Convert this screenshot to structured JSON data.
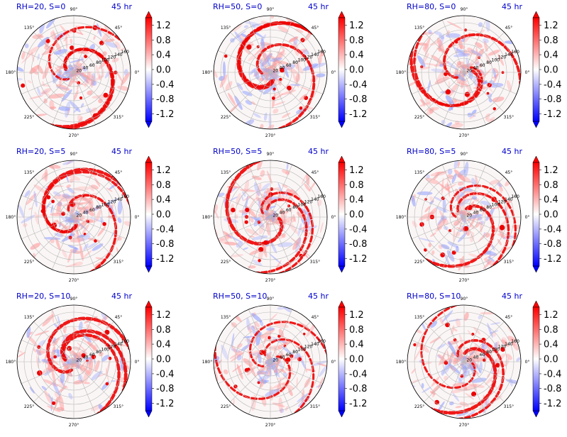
{
  "figure": {
    "time_label": "45 hr",
    "colors": {
      "title": "#0000cc",
      "positive": "#ee0000",
      "negative": "#0000ee",
      "grid": "#b8b8b8"
    }
  },
  "chart_data": [
    {
      "type": "heatmap",
      "projection": "polar",
      "title": "RH=20, S=0",
      "annotation": "45 hr",
      "r_ticks": [
        20,
        40,
        60,
        80,
        100,
        120,
        140,
        160
      ],
      "theta_ticks": [
        "90°",
        "135°",
        "180°",
        "225°",
        "270°",
        "315°",
        "0°",
        "45°"
      ],
      "colorbar": {
        "ticks": [
          1.2,
          0.8,
          0.4,
          0.0,
          -0.4,
          -0.8,
          -1.2
        ],
        "extend": "both",
        "cmap": "bwr"
      }
    },
    {
      "type": "heatmap",
      "projection": "polar",
      "title": "RH=50, S=0",
      "annotation": "45 hr",
      "r_ticks": [
        20,
        40,
        60,
        80,
        100,
        120,
        140,
        160
      ],
      "theta_ticks": [
        "90°",
        "135°",
        "180°",
        "225°",
        "270°",
        "315°",
        "0°",
        "45°"
      ],
      "colorbar": {
        "ticks": [
          1.2,
          0.8,
          0.4,
          0.0,
          -0.4,
          -0.8,
          -1.2
        ],
        "extend": "both",
        "cmap": "bwr"
      }
    },
    {
      "type": "heatmap",
      "projection": "polar",
      "title": "RH=80, S=0",
      "annotation": "45 hr",
      "r_ticks": [
        20,
        40,
        60,
        80,
        100,
        120,
        140,
        160
      ],
      "theta_ticks": [
        "90°",
        "135°",
        "180°",
        "225°",
        "270°",
        "315°",
        "0°",
        "45°"
      ],
      "colorbar": {
        "ticks": [
          1.2,
          0.8,
          0.4,
          0.0,
          -0.4,
          -0.8,
          -1.2
        ],
        "extend": "both",
        "cmap": "bwr"
      }
    },
    {
      "type": "heatmap",
      "projection": "polar",
      "title": "RH=20, S=5",
      "annotation": "45 hr",
      "r_ticks": [
        20,
        40,
        60,
        80,
        100,
        120,
        140,
        160
      ],
      "theta_ticks": [
        "90°",
        "135°",
        "180°",
        "225°",
        "270°",
        "315°",
        "0°",
        "45°"
      ],
      "colorbar": {
        "ticks": [
          1.2,
          0.8,
          0.4,
          0.0,
          -0.4,
          -0.8,
          -1.2
        ],
        "extend": "both",
        "cmap": "bwr"
      }
    },
    {
      "type": "heatmap",
      "projection": "polar",
      "title": "RH=50, S=5",
      "annotation": "45 hr",
      "r_ticks": [
        20,
        40,
        60,
        80,
        100,
        120,
        140,
        160
      ],
      "theta_ticks": [
        "90°",
        "135°",
        "180°",
        "225°",
        "270°",
        "315°",
        "0°",
        "45°"
      ],
      "colorbar": {
        "ticks": [
          1.2,
          0.8,
          0.4,
          0.0,
          -0.4,
          -0.8,
          -1.2
        ],
        "extend": "both",
        "cmap": "bwr"
      }
    },
    {
      "type": "heatmap",
      "projection": "polar",
      "title": "RH=80, S=5",
      "annotation": "45 hr",
      "r_ticks": [
        20,
        40,
        60,
        80,
        100,
        120,
        140,
        160
      ],
      "theta_ticks": [
        "90°",
        "135°",
        "180°",
        "225°",
        "270°",
        "315°",
        "0°",
        "45°"
      ],
      "colorbar": {
        "ticks": [
          1.2,
          0.8,
          0.4,
          0.0,
          -0.4,
          -0.8,
          -1.2
        ],
        "extend": "both",
        "cmap": "bwr"
      }
    },
    {
      "type": "heatmap",
      "projection": "polar",
      "title": "RH=20, S=10",
      "annotation": "45 hr",
      "r_ticks": [
        20,
        40,
        60,
        80,
        100,
        120,
        140,
        160
      ],
      "theta_ticks": [
        "90°",
        "135°",
        "180°",
        "225°",
        "270°",
        "315°",
        "0°",
        "45°"
      ],
      "colorbar": {
        "ticks": [
          1.2,
          0.8,
          0.4,
          0.0,
          -0.4,
          -0.8,
          -1.2
        ],
        "extend": "both",
        "cmap": "bwr"
      }
    },
    {
      "type": "heatmap",
      "projection": "polar",
      "title": "RH=50, S=10",
      "annotation": "45 hr",
      "r_ticks": [
        20,
        40,
        60,
        80,
        100,
        120,
        140,
        160
      ],
      "theta_ticks": [
        "90°",
        "135°",
        "180°",
        "225°",
        "270°",
        "315°",
        "0°",
        "45°"
      ],
      "colorbar": {
        "ticks": [
          1.2,
          0.8,
          0.4,
          0.0,
          -0.4,
          -0.8,
          -1.2
        ],
        "extend": "both",
        "cmap": "bwr"
      }
    },
    {
      "type": "heatmap",
      "projection": "polar",
      "title": "RH=80, S=10",
      "annotation": "45 hr",
      "r_ticks": [
        20,
        40,
        60,
        80,
        100,
        120,
        140,
        160
      ],
      "theta_ticks": [
        "90°",
        "135°",
        "180°",
        "225°",
        "270°",
        "315°",
        "0°",
        "45°"
      ],
      "colorbar": {
        "ticks": [
          1.2,
          0.8,
          0.4,
          0.0,
          -0.4,
          -0.8,
          -1.2
        ],
        "extend": "both",
        "cmap": "bwr"
      }
    }
  ]
}
